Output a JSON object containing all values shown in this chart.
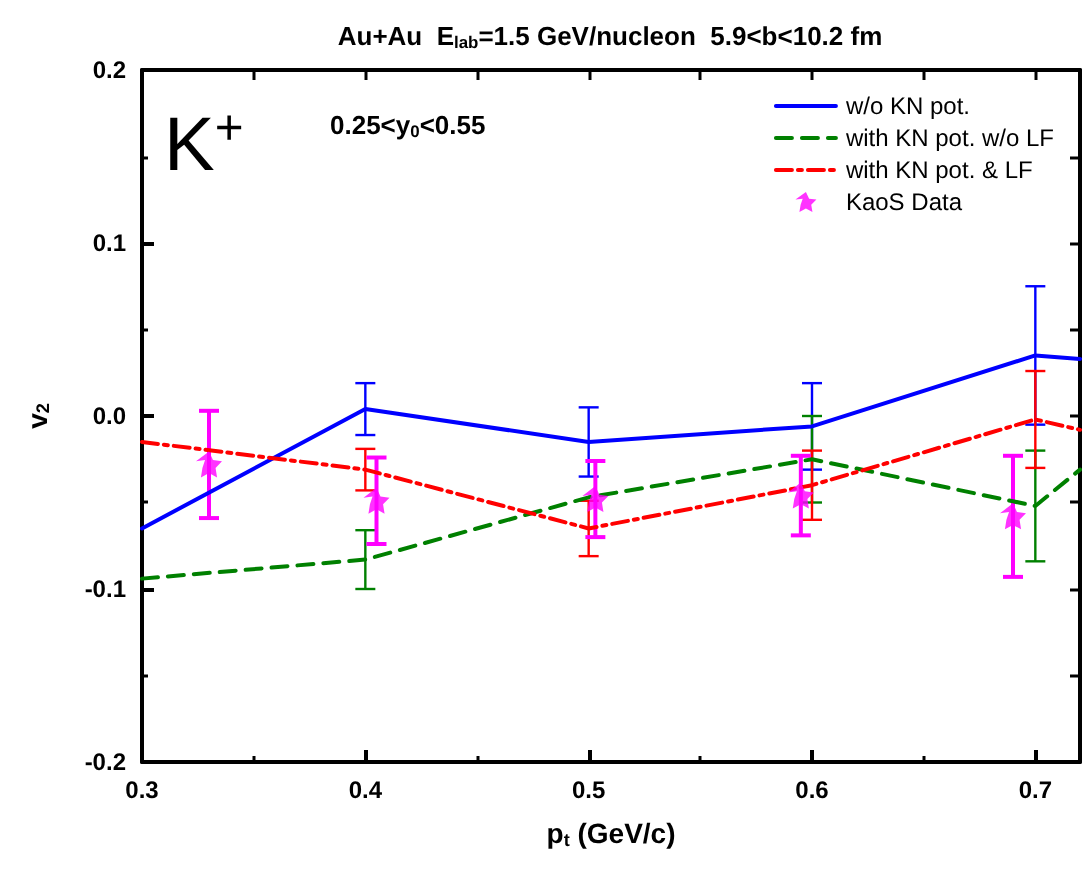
{
  "chart_data": {
    "type": "line",
    "title": "Au+Au  E$_{lab}$=1.5 GeV/nucleon  5.9<b<10.2 fm",
    "xlabel": "p$_{t}$ (GeV/c)",
    "ylabel": "v$_{2}$",
    "annotations": [
      "K$^{+}$",
      "0.25<y$_{0}$<0.55"
    ],
    "xlim": [
      0.3,
      0.72
    ],
    "xticks": [
      0.3,
      0.4,
      0.5,
      0.6,
      0.7
    ],
    "ylim": [
      -0.2,
      0.2
    ],
    "yticks": [
      -0.2,
      -0.1,
      {
        "value": 0,
        "label": "0.0"
      },
      0.1,
      0.2
    ],
    "grid": false,
    "legend": "top right",
    "series": [
      {
        "name": "w/o KN pot.",
        "color": "#0000ff",
        "line_style": "solid",
        "marker": "none",
        "x": [
          0.3,
          0.4,
          0.5,
          0.6,
          0.7,
          0.72
        ],
        "values": [
          -0.065,
          0.004,
          -0.015,
          -0.006,
          0.035,
          0.033
        ],
        "errors": [
          null,
          0.015,
          0.02,
          0.025,
          0.04,
          null
        ]
      },
      {
        "name": "with KN pot. w/o LF",
        "color": "#008000",
        "line_style": "dashed",
        "marker": "none",
        "x": [
          0.3,
          0.4,
          0.5,
          0.6,
          0.7,
          0.72
        ],
        "values": [
          -0.094,
          -0.083,
          -0.047,
          -0.025,
          -0.052,
          -0.031
        ],
        "errors": [
          null,
          0.017,
          null,
          0.025,
          0.032,
          null
        ]
      },
      {
        "name": "with KN pot. & LF",
        "color": "#ff0000",
        "line_style": "dashdot",
        "marker": "none",
        "x": [
          0.3,
          0.4,
          0.5,
          0.6,
          0.7,
          0.72
        ],
        "values": [
          -0.015,
          -0.031,
          -0.065,
          -0.04,
          -0.002,
          -0.008
        ],
        "errors": [
          null,
          0.012,
          0.016,
          0.02,
          0.028,
          null
        ]
      },
      {
        "name": "KaoS Data",
        "type": "scatter",
        "color": "#ff00ff",
        "marker": "star",
        "x": [
          0.33,
          0.405,
          0.503,
          0.595,
          0.69
        ],
        "values": [
          -0.028,
          -0.049,
          -0.048,
          -0.046,
          -0.058
        ],
        "errors": [
          0.031,
          0.025,
          0.022,
          0.023,
          0.035
        ]
      }
    ]
  }
}
